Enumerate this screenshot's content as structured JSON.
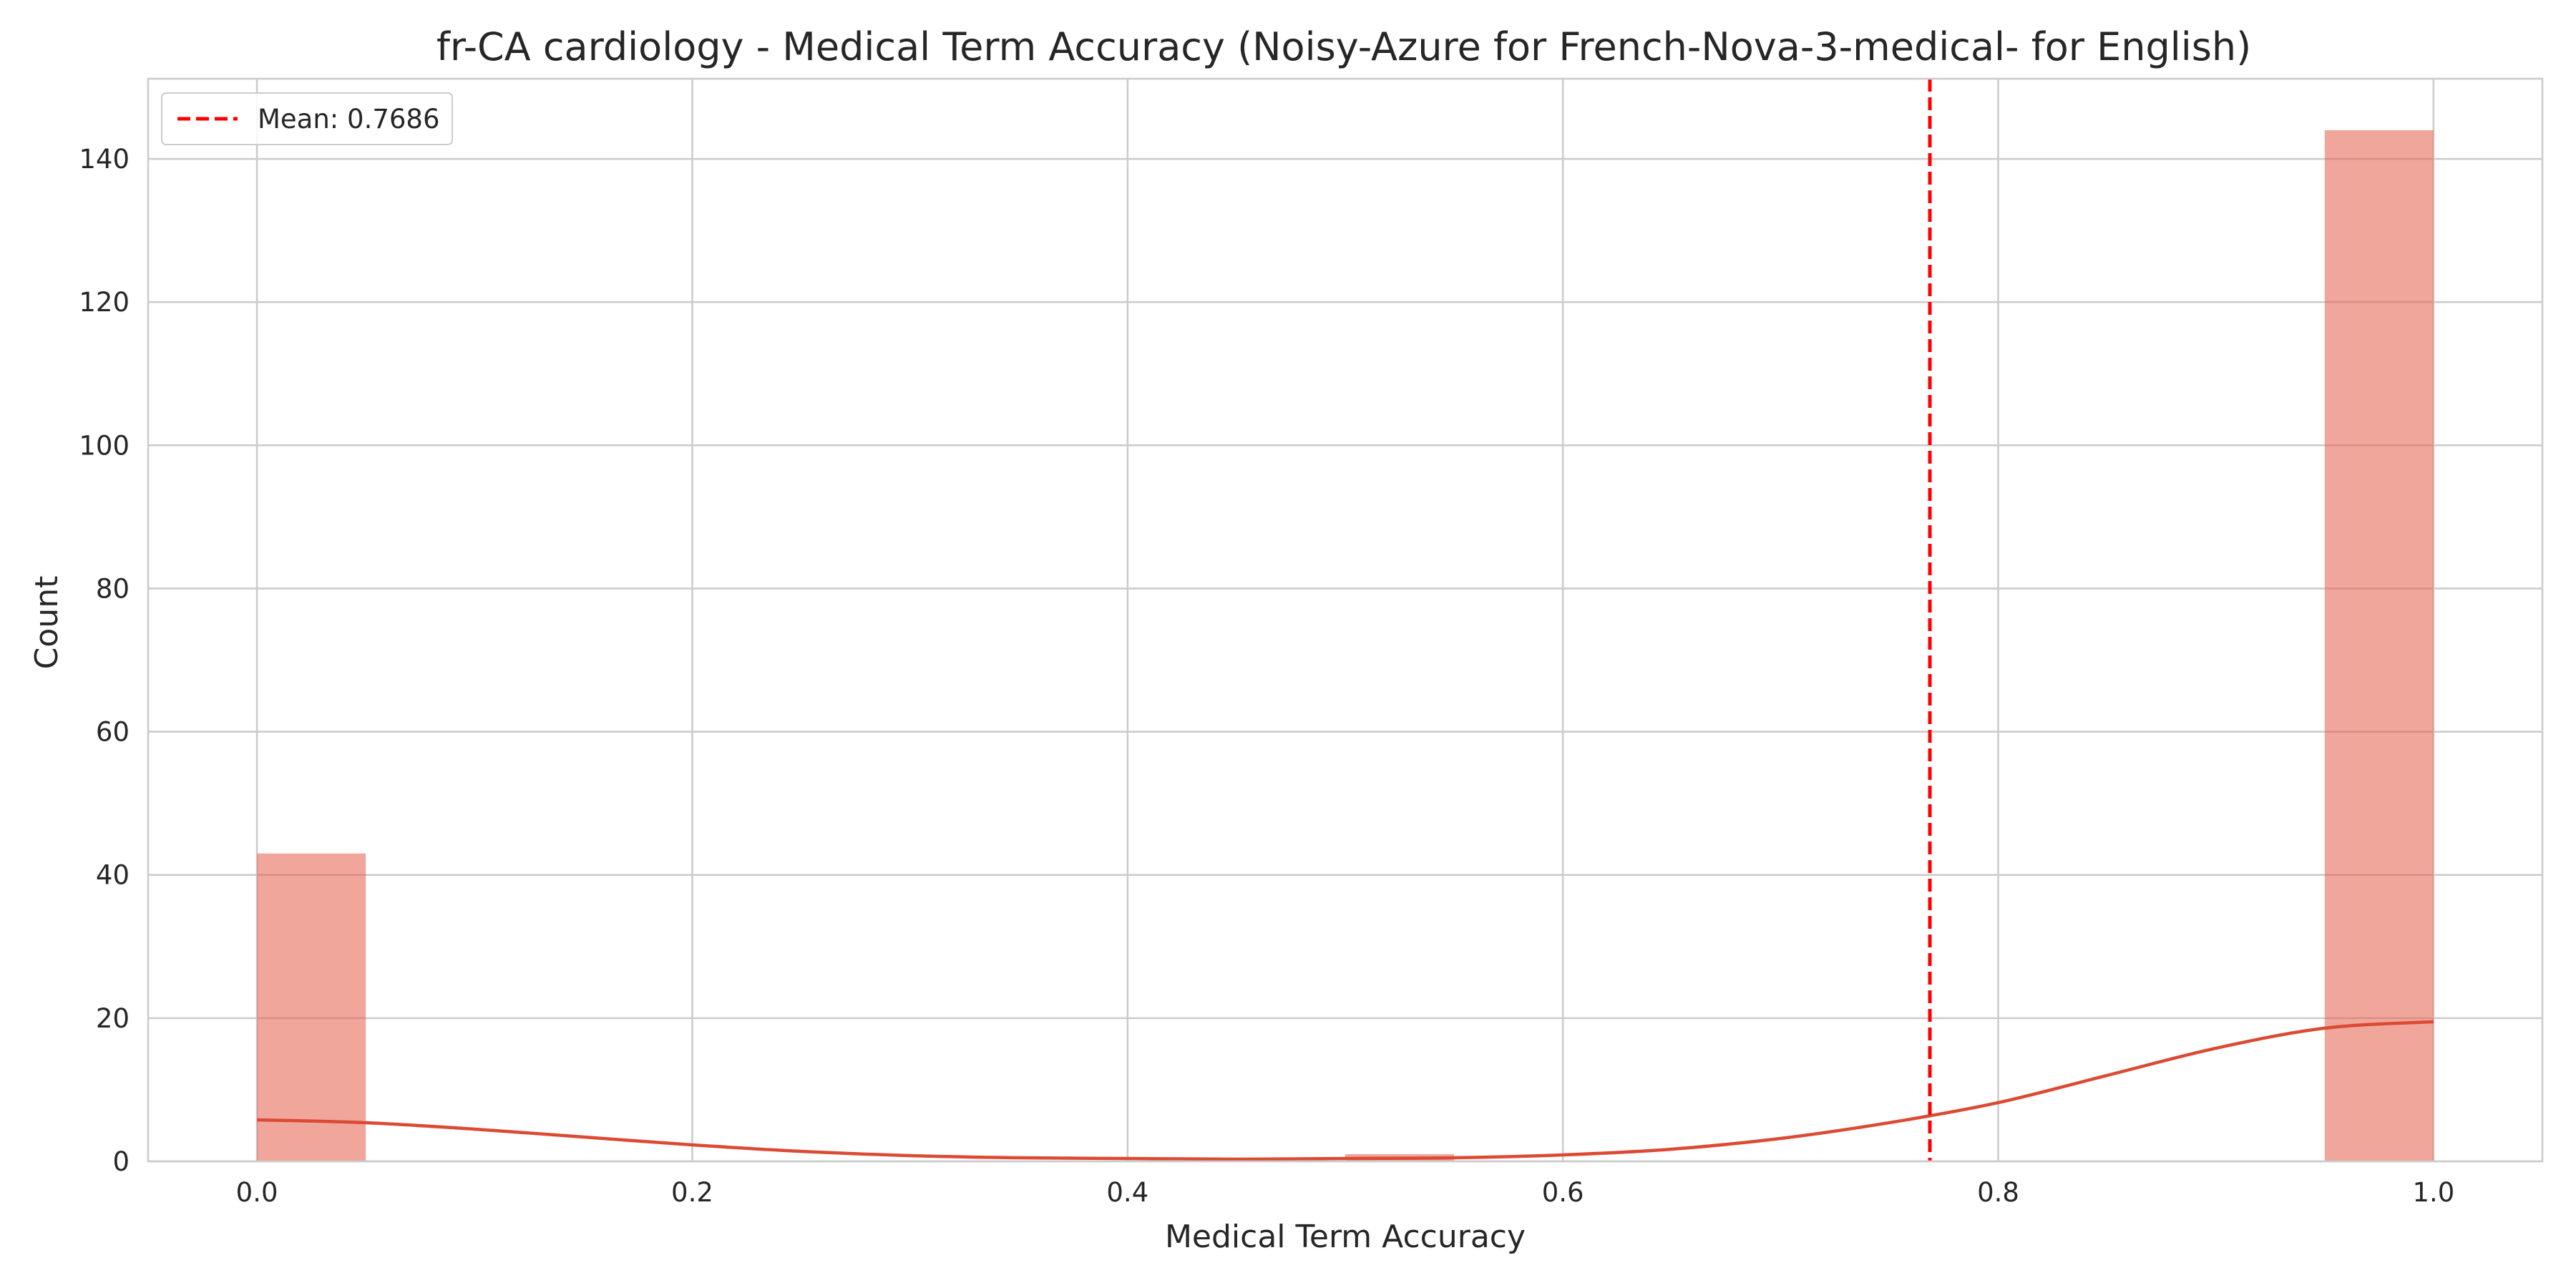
{
  "chart_data": {
    "type": "histogram",
    "title": "fr-CA cardiology - Medical Term Accuracy (Noisy-Azure for French-Nova-3-medical- for English)",
    "xlabel": "Medical Term Accuracy",
    "ylabel": "Count",
    "xlim": [
      -0.05,
      1.05
    ],
    "ylim": [
      0,
      151.2
    ],
    "xticks": [
      0.0,
      0.2,
      0.4,
      0.6,
      0.8,
      1.0
    ],
    "xtick_labels": [
      "0.0",
      "0.2",
      "0.4",
      "0.6",
      "0.8",
      "1.0"
    ],
    "yticks": [
      0,
      20,
      40,
      60,
      80,
      100,
      120,
      140
    ],
    "ytick_labels": [
      "0",
      "20",
      "40",
      "60",
      "80",
      "100",
      "120",
      "140"
    ],
    "grid": true,
    "bars": [
      {
        "x0": 0.0,
        "x1": 0.05,
        "count": 43
      },
      {
        "x0": 0.5,
        "x1": 0.55,
        "count": 1
      },
      {
        "x0": 0.95,
        "x1": 1.0,
        "count": 144
      }
    ],
    "bar_color": "#e65c4a",
    "kde": {
      "color": "#dc4a33",
      "x": [
        0.0,
        0.05,
        0.1,
        0.15,
        0.2,
        0.25,
        0.3,
        0.35,
        0.4,
        0.45,
        0.5,
        0.55,
        0.6,
        0.65,
        0.7,
        0.75,
        0.8,
        0.85,
        0.9,
        0.95,
        1.0
      ],
      "y": [
        5.8,
        5.4,
        4.5,
        3.4,
        2.3,
        1.4,
        0.8,
        0.5,
        0.4,
        0.3,
        0.4,
        0.5,
        0.9,
        1.7,
        3.2,
        5.4,
        8.2,
        12.0,
        15.8,
        18.6,
        19.5
      ]
    },
    "mean_line": {
      "value": 0.7686,
      "label": "Mean: 0.7686",
      "color": "#ff0000",
      "style": "dashed"
    },
    "legend": {
      "placement": "top-left",
      "entries": [
        "Mean: 0.7686"
      ]
    }
  }
}
